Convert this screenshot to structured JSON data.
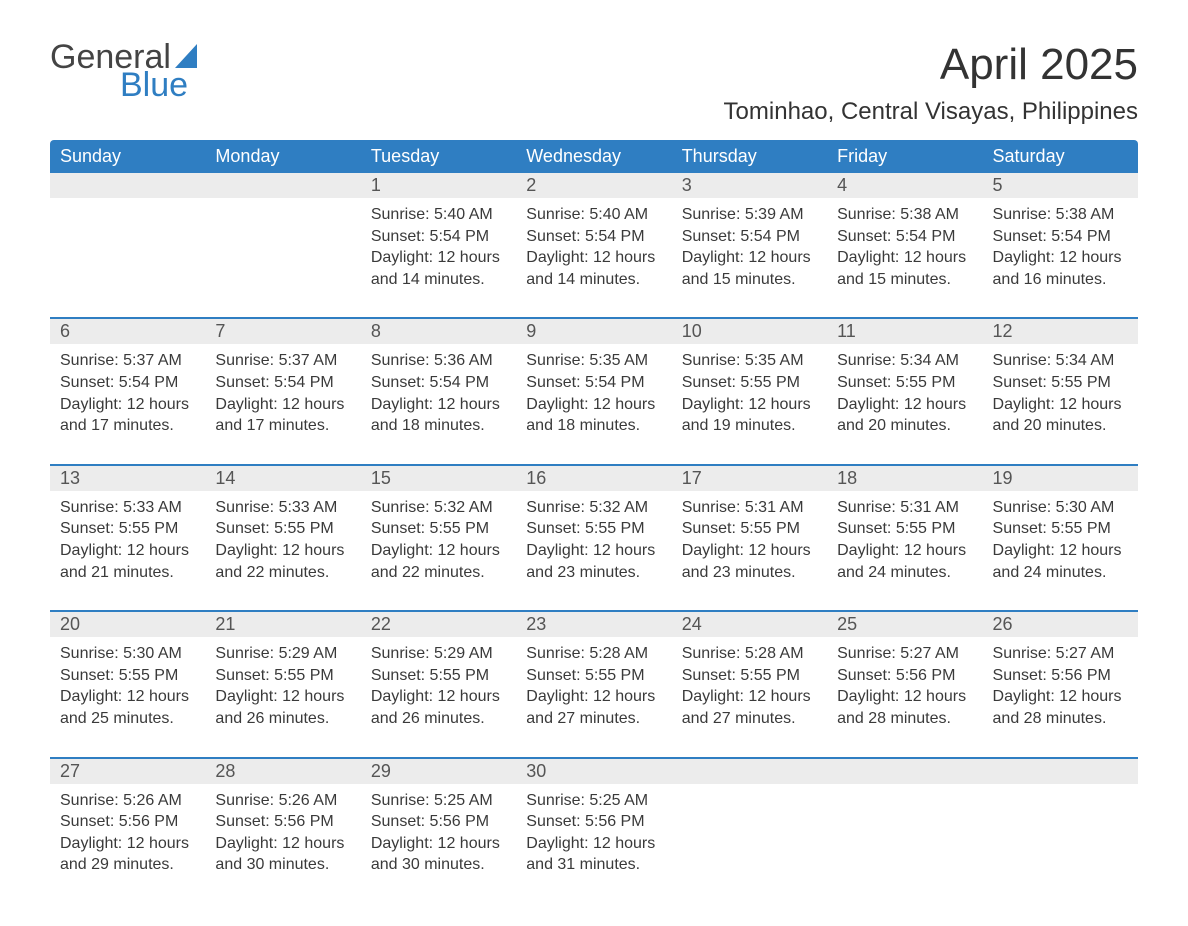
{
  "brand": {
    "word1": "General",
    "word2": "Blue"
  },
  "title": "April 2025",
  "location": "Tominhao, Central Visayas, Philippines",
  "colors": {
    "header_bg": "#2f7ec2",
    "header_text": "#ffffff",
    "daynum_bg": "#ececec",
    "rule": "#2f7ec2",
    "body_text": "#3a3a3a",
    "brand_blue": "#2f7ec2"
  },
  "typography": {
    "title_fontsize": 44,
    "location_fontsize": 24,
    "header_fontsize": 18,
    "daynum_fontsize": 18,
    "cell_fontsize": 16
  },
  "weekday_labels": [
    "Sunday",
    "Monday",
    "Tuesday",
    "Wednesday",
    "Thursday",
    "Friday",
    "Saturday"
  ],
  "labels": {
    "sunrise": "Sunrise: ",
    "sunset": "Sunset: ",
    "daylight": "Daylight: "
  },
  "weeks": [
    [
      null,
      null,
      {
        "n": "1",
        "sunrise": "5:40 AM",
        "sunset": "5:54 PM",
        "daylight": "12 hours and 14 minutes."
      },
      {
        "n": "2",
        "sunrise": "5:40 AM",
        "sunset": "5:54 PM",
        "daylight": "12 hours and 14 minutes."
      },
      {
        "n": "3",
        "sunrise": "5:39 AM",
        "sunset": "5:54 PM",
        "daylight": "12 hours and 15 minutes."
      },
      {
        "n": "4",
        "sunrise": "5:38 AM",
        "sunset": "5:54 PM",
        "daylight": "12 hours and 15 minutes."
      },
      {
        "n": "5",
        "sunrise": "5:38 AM",
        "sunset": "5:54 PM",
        "daylight": "12 hours and 16 minutes."
      }
    ],
    [
      {
        "n": "6",
        "sunrise": "5:37 AM",
        "sunset": "5:54 PM",
        "daylight": "12 hours and 17 minutes."
      },
      {
        "n": "7",
        "sunrise": "5:37 AM",
        "sunset": "5:54 PM",
        "daylight": "12 hours and 17 minutes."
      },
      {
        "n": "8",
        "sunrise": "5:36 AM",
        "sunset": "5:54 PM",
        "daylight": "12 hours and 18 minutes."
      },
      {
        "n": "9",
        "sunrise": "5:35 AM",
        "sunset": "5:54 PM",
        "daylight": "12 hours and 18 minutes."
      },
      {
        "n": "10",
        "sunrise": "5:35 AM",
        "sunset": "5:55 PM",
        "daylight": "12 hours and 19 minutes."
      },
      {
        "n": "11",
        "sunrise": "5:34 AM",
        "sunset": "5:55 PM",
        "daylight": "12 hours and 20 minutes."
      },
      {
        "n": "12",
        "sunrise": "5:34 AM",
        "sunset": "5:55 PM",
        "daylight": "12 hours and 20 minutes."
      }
    ],
    [
      {
        "n": "13",
        "sunrise": "5:33 AM",
        "sunset": "5:55 PM",
        "daylight": "12 hours and 21 minutes."
      },
      {
        "n": "14",
        "sunrise": "5:33 AM",
        "sunset": "5:55 PM",
        "daylight": "12 hours and 22 minutes."
      },
      {
        "n": "15",
        "sunrise": "5:32 AM",
        "sunset": "5:55 PM",
        "daylight": "12 hours and 22 minutes."
      },
      {
        "n": "16",
        "sunrise": "5:32 AM",
        "sunset": "5:55 PM",
        "daylight": "12 hours and 23 minutes."
      },
      {
        "n": "17",
        "sunrise": "5:31 AM",
        "sunset": "5:55 PM",
        "daylight": "12 hours and 23 minutes."
      },
      {
        "n": "18",
        "sunrise": "5:31 AM",
        "sunset": "5:55 PM",
        "daylight": "12 hours and 24 minutes."
      },
      {
        "n": "19",
        "sunrise": "5:30 AM",
        "sunset": "5:55 PM",
        "daylight": "12 hours and 24 minutes."
      }
    ],
    [
      {
        "n": "20",
        "sunrise": "5:30 AM",
        "sunset": "5:55 PM",
        "daylight": "12 hours and 25 minutes."
      },
      {
        "n": "21",
        "sunrise": "5:29 AM",
        "sunset": "5:55 PM",
        "daylight": "12 hours and 26 minutes."
      },
      {
        "n": "22",
        "sunrise": "5:29 AM",
        "sunset": "5:55 PM",
        "daylight": "12 hours and 26 minutes."
      },
      {
        "n": "23",
        "sunrise": "5:28 AM",
        "sunset": "5:55 PM",
        "daylight": "12 hours and 27 minutes."
      },
      {
        "n": "24",
        "sunrise": "5:28 AM",
        "sunset": "5:55 PM",
        "daylight": "12 hours and 27 minutes."
      },
      {
        "n": "25",
        "sunrise": "5:27 AM",
        "sunset": "5:56 PM",
        "daylight": "12 hours and 28 minutes."
      },
      {
        "n": "26",
        "sunrise": "5:27 AM",
        "sunset": "5:56 PM",
        "daylight": "12 hours and 28 minutes."
      }
    ],
    [
      {
        "n": "27",
        "sunrise": "5:26 AM",
        "sunset": "5:56 PM",
        "daylight": "12 hours and 29 minutes."
      },
      {
        "n": "28",
        "sunrise": "5:26 AM",
        "sunset": "5:56 PM",
        "daylight": "12 hours and 30 minutes."
      },
      {
        "n": "29",
        "sunrise": "5:25 AM",
        "sunset": "5:56 PM",
        "daylight": "12 hours and 30 minutes."
      },
      {
        "n": "30",
        "sunrise": "5:25 AM",
        "sunset": "5:56 PM",
        "daylight": "12 hours and 31 minutes."
      },
      null,
      null,
      null
    ]
  ]
}
